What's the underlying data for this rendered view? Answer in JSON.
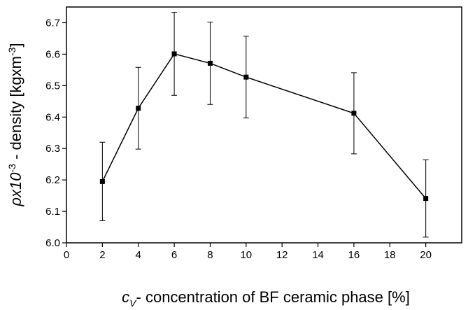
{
  "chart_data": {
    "type": "line",
    "x": [
      2,
      4,
      6,
      8,
      10,
      16,
      20
    ],
    "series": [
      {
        "color": "#000000",
        "values": [
          6.195,
          6.428,
          6.601,
          6.571,
          6.527,
          6.412,
          6.141
        ],
        "errors": [
          0.125,
          0.13,
          0.132,
          0.131,
          0.13,
          0.129,
          0.123
        ]
      }
    ],
    "xlim": [
      0,
      22
    ],
    "ylim": [
      6.0,
      6.75
    ],
    "xticks": [
      0,
      2,
      4,
      6,
      8,
      10,
      12,
      14,
      16,
      18,
      20
    ],
    "yticks": [
      {
        "value": 6,
        "label": "6.0"
      },
      6.1,
      6.2,
      6.3,
      6.4,
      6.5,
      6.6,
      6.7
    ],
    "x_label": [
      "c",
      "V",
      "- concentration of BF ceramic phase [%]"
    ],
    "y_label": [
      "ρx10",
      "-3",
      " - density [kgxm",
      "-3",
      "]"
    ]
  }
}
